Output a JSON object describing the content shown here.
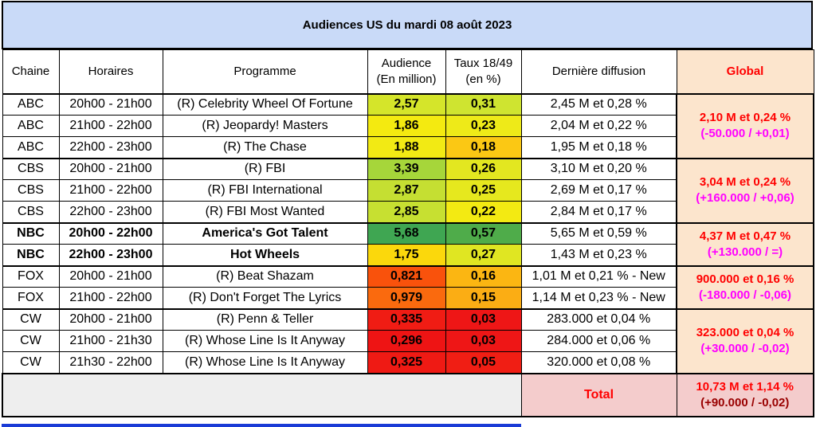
{
  "title": "Audiences US du mardi 08 août 2023",
  "headers": {
    "chaine": "Chaine",
    "horaires": "Horaires",
    "programme": "Programme",
    "audience_l1": "Audience",
    "audience_l2": "(En million)",
    "taux_l1": "Taux 18/49",
    "taux_l2": "(en %)",
    "derniere": "Dernière diffusion",
    "global": "Global"
  },
  "groups": [
    {
      "global_main": "2,10 M et 0,24 %",
      "global_delta": "(-50.000 / +0,01)",
      "rows": [
        {
          "chaine": "ABC",
          "horaires": "20h00 - 21h00",
          "programme": "(R) Celebrity Wheel Of Fortune",
          "audience": "2,57",
          "taux": "0,31",
          "derniere": "2,45 M et 0,28 %",
          "aud_color": "#d5e52a",
          "taux_color": "#cfe430",
          "bold": false
        },
        {
          "chaine": "ABC",
          "horaires": "21h00 - 22h00",
          "programme": "(R) Jeopardy! Masters",
          "audience": "1,86",
          "taux": "0,23",
          "derniere": "2,04 M et 0,22 %",
          "aud_color": "#f4ea10",
          "taux_color": "#eeea18",
          "bold": false
        },
        {
          "chaine": "ABC",
          "horaires": "22h00 - 23h00",
          "programme": "(R) The Chase",
          "audience": "1,88",
          "taux": "0,18",
          "derniere": "1,95 M et 0,18 %",
          "aud_color": "#f2ea14",
          "taux_color": "#fbc814",
          "bold": false
        }
      ]
    },
    {
      "global_main": "3,04 M et 0,24 %",
      "global_delta": "(+160.000 / +0,06)",
      "rows": [
        {
          "chaine": "CBS",
          "horaires": "20h00 - 21h00",
          "programme": "(R) FBI",
          "audience": "3,39",
          "taux": "0,26",
          "derniere": "3,10 M et 0,20 %",
          "aud_color": "#a6d63a",
          "taux_color": "#e3e720",
          "bold": false
        },
        {
          "chaine": "CBS",
          "horaires": "21h00 - 22h00",
          "programme": "(R) FBI International",
          "audience": "2,87",
          "taux": "0,25",
          "derniere": "2,69 M et 0,17 %",
          "aud_color": "#c5df32",
          "taux_color": "#e6e81e",
          "bold": false
        },
        {
          "chaine": "CBS",
          "horaires": "22h00 - 23h00",
          "programme": "(R) FBI Most Wanted",
          "audience": "2,85",
          "taux": "0,22",
          "derniere": "2,84 M et 0,17 %",
          "aud_color": "#c7e031",
          "taux_color": "#f3ea12",
          "bold": false
        }
      ]
    },
    {
      "global_main": "4,37 M et 0,47 %",
      "global_delta": "(+130.000 / =)",
      "rows": [
        {
          "chaine": "NBC",
          "horaires": "20h00 - 22h00",
          "programme": "America's Got Talent",
          "audience": "5,68",
          "taux": "0,57",
          "derniere": "5,65 M et 0,59 %",
          "aud_color": "#3fa652",
          "taux_color": "#4fac4a",
          "bold": true
        },
        {
          "chaine": "NBC",
          "horaires": "22h00 - 23h00",
          "programme": "Hot Wheels",
          "audience": "1,75",
          "taux": "0,27",
          "derniere": "1,43 M et 0,23 %",
          "aud_color": "#fbd80c",
          "taux_color": "#e0e622",
          "bold": true
        }
      ]
    },
    {
      "global_main": "900.000 et 0,16 %",
      "global_delta": "(-180.000 / -0,06)",
      "rows": [
        {
          "chaine": "FOX",
          "horaires": "20h00 - 21h00",
          "programme": "(R) Beat Shazam",
          "audience": "0,821",
          "taux": "0,16",
          "derniere": "1,01 M et 0,21 % - New",
          "aud_color": "#f9520c",
          "taux_color": "#fbb612",
          "bold": false
        },
        {
          "chaine": "FOX",
          "horaires": "21h00 - 22h00",
          "programme": "(R) Don't Forget The Lyrics",
          "audience": "0,979",
          "taux": "0,15",
          "derniere": "1,14 M et 0,23 % - New",
          "aud_color": "#fa6a0e",
          "taux_color": "#fbad14",
          "bold": false
        }
      ]
    },
    {
      "global_main": "323.000 et 0,04 %",
      "global_delta": "(+30.000 / -0,02)",
      "rows": [
        {
          "chaine": "CW",
          "horaires": "20h00 - 21h00",
          "programme": "(R) Penn & Teller",
          "audience": "0,335",
          "taux": "0,03",
          "derniere": "283.000 et 0,04 %",
          "aud_color": "#f01c14",
          "taux_color": "#ee1616",
          "bold": false
        },
        {
          "chaine": "CW",
          "horaires": "21h00 - 21h30",
          "programme": "(R) Whose Line Is It Anyway",
          "audience": "0,296",
          "taux": "0,03",
          "derniere": "284.000 et 0,06 %",
          "aud_color": "#ee1414",
          "taux_color": "#ee1616",
          "bold": false
        },
        {
          "chaine": "CW",
          "horaires": "21h30 - 22h00",
          "programme": "(R) Whose Line Is It Anyway",
          "audience": "0,325",
          "taux": "0,05",
          "derniere": "320.000 et 0,08 %",
          "aud_color": "#ef1a14",
          "taux_color": "#f01e14",
          "bold": false
        }
      ]
    }
  ],
  "total": {
    "label": "Total",
    "main": "10,73 M et 1,14 %",
    "delta": "(+90.000 / -0,02)"
  }
}
